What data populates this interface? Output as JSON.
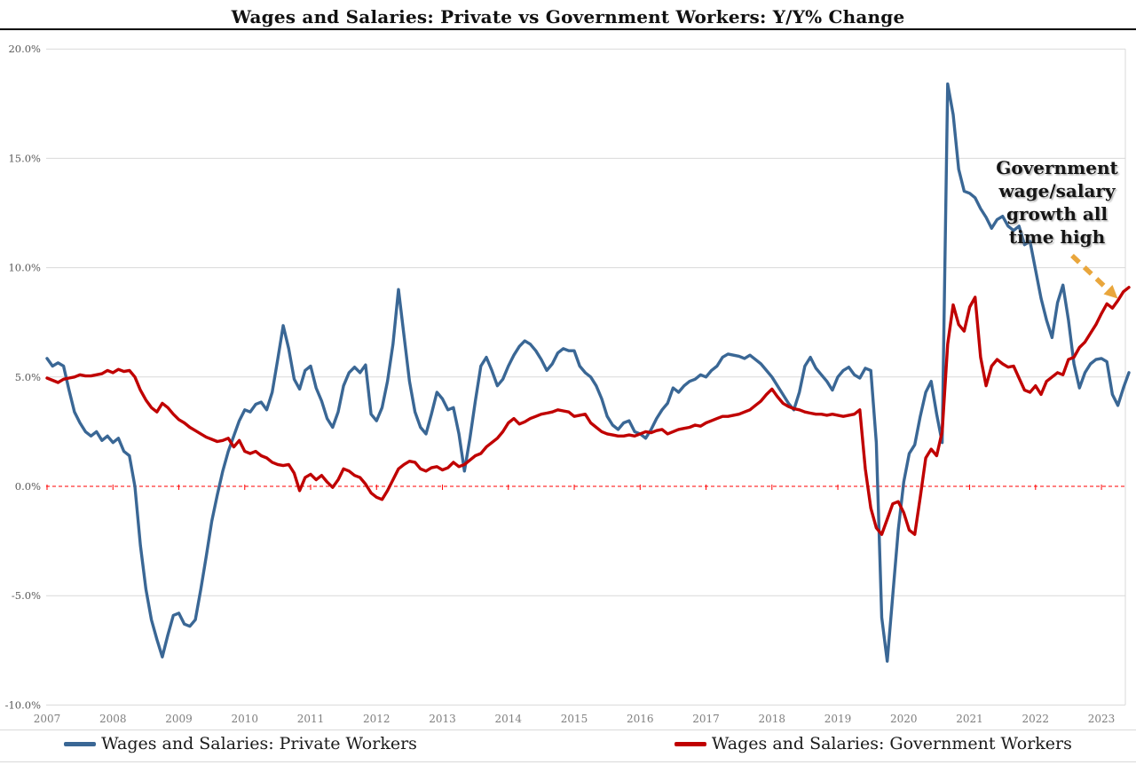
{
  "page": {
    "title": "Wages and Salaries: Private vs Government Workers: Y/Y% Change"
  },
  "chart_data": {
    "type": "line",
    "title": "Wages and Salaries: Private vs Government Workers: Y/Y% Change",
    "frequency": "monthly",
    "x_start_year": "2007",
    "x_end_year": "2023",
    "x_year_labels": [
      "2007",
      "2008",
      "2009",
      "2010",
      "2011",
      "2012",
      "2013",
      "2014",
      "2015",
      "2016",
      "2017",
      "2018",
      "2019",
      "2020",
      "2021",
      "2022",
      "2023"
    ],
    "y_ticks": [
      {
        "label": "20.0%",
        "value": 20
      },
      {
        "label": "15.0%",
        "value": 15
      },
      {
        "label": "10.0%",
        "value": 10
      },
      {
        "label": "5.0%",
        "value": 5
      },
      {
        "label": "0.0%",
        "value": 0
      },
      {
        "label": "-5.0%",
        "value": -5
      },
      {
        "label": "-10.0%",
        "value": -10
      }
    ],
    "ylim": [
      -10,
      20
    ],
    "grid": "horizontal",
    "zero_line": {
      "style": "dashed",
      "color": "#ff0000"
    },
    "legend_position": "bottom",
    "series": [
      {
        "name": "Wages and Salaries: Private Workers",
        "color": "#3A6795",
        "values": [
          5.85,
          5.5,
          5.65,
          5.5,
          4.4,
          3.4,
          2.9,
          2.5,
          2.3,
          2.5,
          2.1,
          2.3,
          2.0,
          2.2,
          1.6,
          1.4,
          0.0,
          -2.7,
          -4.7,
          -6.1,
          -7.0,
          -7.8,
          -6.8,
          -5.9,
          -5.8,
          -6.3,
          -6.4,
          -6.1,
          -4.7,
          -3.2,
          -1.6,
          -0.4,
          0.7,
          1.6,
          2.3,
          3.0,
          3.5,
          3.4,
          3.75,
          3.85,
          3.5,
          4.3,
          5.8,
          7.35,
          6.3,
          4.9,
          4.45,
          5.3,
          5.5,
          4.5,
          3.9,
          3.1,
          2.7,
          3.4,
          4.6,
          5.2,
          5.45,
          5.2,
          5.55,
          3.3,
          3.0,
          3.6,
          4.8,
          6.5,
          9.0,
          6.9,
          4.8,
          3.4,
          2.7,
          2.4,
          3.3,
          4.3,
          4.0,
          3.5,
          3.6,
          2.4,
          0.7,
          2.2,
          3.9,
          5.5,
          5.9,
          5.3,
          4.6,
          4.9,
          5.5,
          6.0,
          6.4,
          6.65,
          6.5,
          6.2,
          5.8,
          5.3,
          5.6,
          6.1,
          6.3,
          6.2,
          6.2,
          5.5,
          5.2,
          5.0,
          4.6,
          4.0,
          3.2,
          2.8,
          2.6,
          2.9,
          3.0,
          2.5,
          2.4,
          2.2,
          2.6,
          3.1,
          3.5,
          3.8,
          4.5,
          4.3,
          4.6,
          4.8,
          4.9,
          5.1,
          5.0,
          5.3,
          5.5,
          5.9,
          6.05,
          6.0,
          5.95,
          5.85,
          6.0,
          5.8,
          5.6,
          5.3,
          5.0,
          4.6,
          4.2,
          3.8,
          3.5,
          4.3,
          5.5,
          5.9,
          5.4,
          5.1,
          4.8,
          4.4,
          5.0,
          5.3,
          5.45,
          5.1,
          4.95,
          5.4,
          5.3,
          2.0,
          -6.0,
          -8.0,
          -5.0,
          -2.0,
          0.2,
          1.5,
          1.9,
          3.2,
          4.3,
          4.8,
          3.3,
          2.0,
          18.4,
          17.0,
          14.5,
          13.5,
          13.4,
          13.2,
          12.7,
          12.3,
          11.8,
          12.2,
          12.35,
          11.9,
          11.7,
          11.9,
          11.05,
          11.2,
          9.9,
          8.6,
          7.6,
          6.8,
          8.4,
          9.2,
          7.6,
          5.6,
          4.5,
          5.2,
          5.6,
          5.8,
          5.85,
          5.7,
          4.2,
          3.7,
          4.5,
          5.2
        ]
      },
      {
        "name": "Wages and Salaries: Government Workers",
        "color": "#C00000",
        "values": [
          4.95,
          4.85,
          4.75,
          4.9,
          4.95,
          5.0,
          5.1,
          5.05,
          5.05,
          5.1,
          5.15,
          5.3,
          5.2,
          5.35,
          5.25,
          5.3,
          5.0,
          4.4,
          3.95,
          3.6,
          3.4,
          3.8,
          3.6,
          3.3,
          3.05,
          2.9,
          2.7,
          2.55,
          2.4,
          2.25,
          2.15,
          2.05,
          2.1,
          2.2,
          1.8,
          2.1,
          1.6,
          1.5,
          1.6,
          1.4,
          1.3,
          1.1,
          1.0,
          0.95,
          1.0,
          0.6,
          -0.2,
          0.4,
          0.55,
          0.3,
          0.5,
          0.2,
          -0.05,
          0.3,
          0.8,
          0.7,
          0.5,
          0.4,
          0.1,
          -0.3,
          -0.5,
          -0.6,
          -0.2,
          0.3,
          0.8,
          1.0,
          1.15,
          1.1,
          0.8,
          0.7,
          0.85,
          0.9,
          0.75,
          0.85,
          1.1,
          0.9,
          1.0,
          1.2,
          1.4,
          1.5,
          1.8,
          2.0,
          2.2,
          2.5,
          2.9,
          3.1,
          2.85,
          2.95,
          3.1,
          3.2,
          3.3,
          3.35,
          3.4,
          3.5,
          3.45,
          3.4,
          3.2,
          3.25,
          3.3,
          2.9,
          2.7,
          2.5,
          2.4,
          2.35,
          2.3,
          2.3,
          2.35,
          2.3,
          2.4,
          2.5,
          2.45,
          2.55,
          2.6,
          2.4,
          2.5,
          2.6,
          2.65,
          2.7,
          2.8,
          2.75,
          2.9,
          3.0,
          3.1,
          3.2,
          3.2,
          3.25,
          3.3,
          3.4,
          3.5,
          3.7,
          3.9,
          4.2,
          4.45,
          4.1,
          3.8,
          3.65,
          3.55,
          3.5,
          3.4,
          3.35,
          3.3,
          3.3,
          3.25,
          3.3,
          3.25,
          3.2,
          3.25,
          3.3,
          3.5,
          0.8,
          -1.0,
          -1.9,
          -2.2,
          -1.5,
          -0.8,
          -0.7,
          -1.2,
          -2.0,
          -2.2,
          -0.5,
          1.3,
          1.7,
          1.4,
          2.5,
          6.5,
          8.3,
          7.4,
          7.1,
          8.2,
          8.65,
          5.9,
          4.6,
          5.5,
          5.8,
          5.6,
          5.45,
          5.5,
          4.95,
          4.4,
          4.3,
          4.6,
          4.2,
          4.8,
          5.0,
          5.2,
          5.1,
          5.8,
          5.9,
          6.35,
          6.6,
          7.0,
          7.4,
          7.9,
          8.35,
          8.15,
          8.5,
          8.9,
          9.1
        ]
      }
    ],
    "annotation": {
      "text": "Government wage/salary growth all time high",
      "arrow_color": "#E9A63C"
    },
    "colors": {
      "background": "#ffffff",
      "gridline": "#d9d9d9",
      "zero_line": "#ff0000",
      "axis_text": "#595959",
      "x_axis_text": "#7f7f7f",
      "title_text": "#111111",
      "title_rule": "#000000"
    }
  }
}
